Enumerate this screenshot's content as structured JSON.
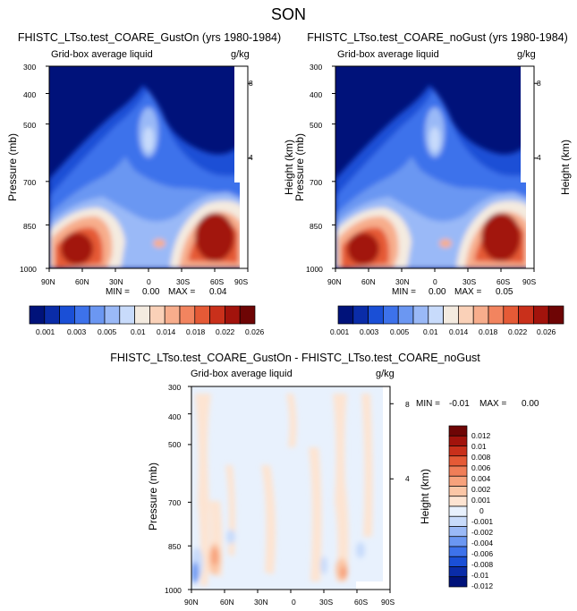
{
  "figure": {
    "title": "SON",
    "field_label": "Grid-box average liquid",
    "units": "g/kg"
  },
  "colors": {
    "abs_levels": [
      "#00127a",
      "#0a2ca8",
      "#1a4fd6",
      "#3d72eb",
      "#6b97f2",
      "#9ab9f7",
      "#c8dbfb",
      "#f4ebe0",
      "#fad1b8",
      "#f7ad8c",
      "#f2845f",
      "#e55a36",
      "#c9301b",
      "#a2130c",
      "#6e0505"
    ],
    "diff_levels": [
      "#00127a",
      "#0a2ca8",
      "#1a4fd6",
      "#3d72eb",
      "#6b97f2",
      "#9ab9f7",
      "#c8dbfb",
      "#e8f1fd",
      "#fde4d2",
      "#fbc6a6",
      "#f7a27c",
      "#f07e58",
      "#e55a36",
      "#c9301b",
      "#a2130c",
      "#6e0505"
    ]
  },
  "chart_data": [
    {
      "type": "heatmap",
      "title": "FHISTC_LTso.test_COARE_GustOn (yrs 1980-1984)",
      "subtitle": "Grid-box average liquid",
      "units": "g/kg",
      "xlabel": "",
      "ylabel": "Pressure (mb)",
      "y2label": "Height (km)",
      "x_ticks": [
        "90N",
        "60N",
        "30N",
        "0",
        "30S",
        "60S",
        "90S"
      ],
      "y_ticks": [
        "300",
        "400",
        "500",
        "700",
        "850",
        "1000"
      ],
      "y2_ticks": [
        "8",
        "4"
      ],
      "min_label": "MIN =",
      "min": "0.00",
      "max_label": "MAX =",
      "max": "0.04",
      "colorbar_labels": [
        "0.001",
        "0.003",
        "0.005",
        "0.01",
        "0.014",
        "0.018",
        "0.022",
        "0.026"
      ]
    },
    {
      "type": "heatmap",
      "title": "FHISTC_LTso.test_COARE_noGust (yrs 1980-1984)",
      "subtitle": "Grid-box average liquid",
      "units": "g/kg",
      "xlabel": "",
      "ylabel": "Pressure (mb)",
      "y2label": "Height (km)",
      "x_ticks": [
        "90N",
        "60N",
        "30N",
        "0",
        "30S",
        "60S",
        "90S"
      ],
      "y_ticks": [
        "300",
        "400",
        "500",
        "700",
        "850",
        "1000"
      ],
      "y2_ticks": [
        "8",
        "4"
      ],
      "min_label": "MIN =",
      "min": "0.00",
      "max_label": "MAX =",
      "max": "0.05",
      "colorbar_labels": [
        "0.001",
        "0.003",
        "0.005",
        "0.01",
        "0.014",
        "0.018",
        "0.022",
        "0.026"
      ]
    },
    {
      "type": "heatmap",
      "title": "FHISTC_LTso.test_COARE_GustOn - FHISTC_LTso.test_COARE_noGust",
      "subtitle": "Grid-box average liquid",
      "units": "g/kg",
      "xlabel": "",
      "ylabel": "Pressure (mb)",
      "y2label": "Height (km)",
      "x_ticks": [
        "90N",
        "60N",
        "30N",
        "0",
        "30S",
        "60S",
        "90S"
      ],
      "y_ticks": [
        "300",
        "400",
        "500",
        "700",
        "850",
        "1000"
      ],
      "y2_ticks": [
        "8",
        "4"
      ],
      "min_label": "MIN =",
      "min": "-0.01",
      "max_label": "MAX =",
      "max": "0.00",
      "colorbar_labels": [
        "0.012",
        "0.01",
        "0.008",
        "0.006",
        "0.004",
        "0.002",
        "0.001",
        "0",
        "-0.001",
        "-0.002",
        "-0.004",
        "-0.006",
        "-0.008",
        "-0.01",
        "-0.012"
      ]
    }
  ]
}
